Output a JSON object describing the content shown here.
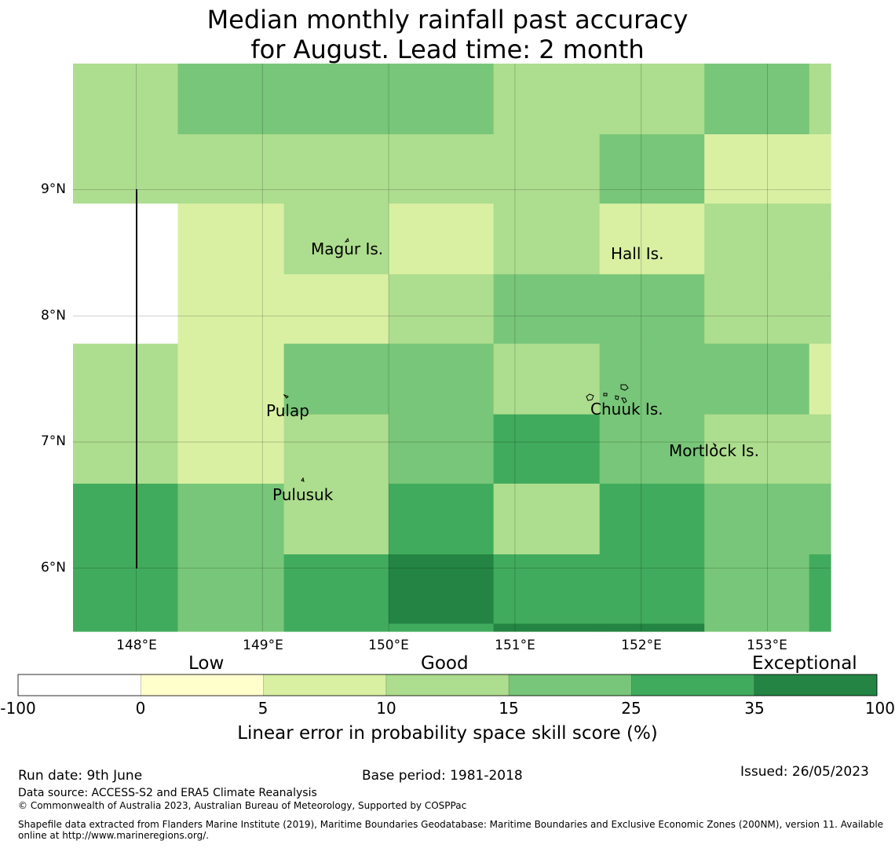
{
  "title_line1": "Median monthly rainfall past accuracy",
  "title_line2": "for August. Lead time: 2 month",
  "axes": {
    "lat_labels": [
      "9°N",
      "8°N",
      "7°N",
      "6°N"
    ],
    "lon_labels": [
      "148°E",
      "149°E",
      "150°E",
      "151°E",
      "152°E",
      "153°E"
    ]
  },
  "places": {
    "magur": "Magur Is.",
    "hall": "Hall Is.",
    "pulap": "Pulap",
    "chuuk": "Chuuk Is.",
    "mortlock": "Mortlock Is.",
    "pulusuk": "Pulusuk"
  },
  "colorbar": {
    "categories": {
      "low": "Low",
      "good": "Good",
      "exceptional": "Exceptional"
    },
    "ticks": [
      "-100",
      "0",
      "5",
      "10",
      "15",
      "25",
      "35",
      "100"
    ],
    "colors": [
      "#ffffff",
      "#ffffcc",
      "#d9f0a3",
      "#addd8e",
      "#78c679",
      "#41ab5d",
      "#238443"
    ],
    "label": "Linear error in probability space skill score (%)"
  },
  "chart_data": {
    "type": "heatmap",
    "lon_range": [
      147.5,
      153.5
    ],
    "lat_range": [
      5.5,
      10.0
    ],
    "grid_lon_edges": [
      147.5,
      148.33,
      149.17,
      150.0,
      150.83,
      151.67,
      152.5,
      153.33,
      153.5
    ],
    "grid_lat_edges": [
      10.0,
      9.44,
      8.89,
      8.33,
      7.78,
      7.22,
      6.67,
      6.11,
      5.56,
      5.5
    ],
    "category_levels": [
      "nodata",
      "<0",
      "0-5",
      "5-10",
      "10-15",
      "15-25",
      "25-35",
      "35-100"
    ],
    "cells": [
      [
        3,
        4,
        4,
        4,
        3,
        3,
        4,
        3
      ],
      [
        3,
        3,
        3,
        3,
        3,
        4,
        2,
        2
      ],
      [
        0,
        2,
        3,
        2,
        3,
        2,
        3,
        3
      ],
      [
        0,
        2,
        2,
        3,
        4,
        4,
        3,
        3
      ],
      [
        3,
        2,
        4,
        4,
        3,
        4,
        4,
        2
      ],
      [
        3,
        2,
        3,
        4,
        5,
        4,
        3,
        3
      ],
      [
        5,
        4,
        3,
        5,
        3,
        5,
        4,
        4
      ],
      [
        5,
        4,
        5,
        6,
        5,
        5,
        4,
        5
      ],
      [
        5,
        4,
        5,
        5,
        6,
        6,
        4,
        5
      ]
    ]
  },
  "footer": {
    "run_date": "Run date: 9th June",
    "base_period": "Base period: 1981-2018",
    "issued": "Issued: 26/05/2023",
    "data_source": "Data source: ACCESS-S2 and ERA5 Climate Reanalysis",
    "copyright": "© Commonwealth of Australia 2023, Australian Bureau of Meteorology, Supported by COSPPac",
    "shapefile_line1": "Shapefile data extracted from Flanders Marine Institute (2019), Maritime Boundaries Geodatabase: Maritime Boundaries and Exclusive Economic Zones (200NM), version 11. Available",
    "shapefile_line2": "online at http://www.marineregions.org/."
  }
}
